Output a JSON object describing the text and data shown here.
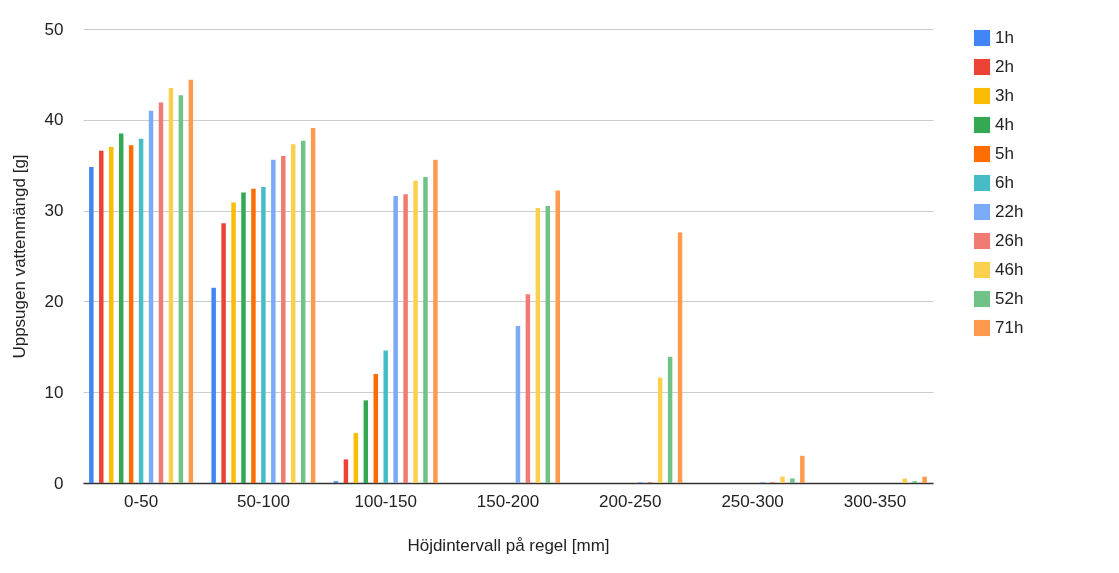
{
  "chart_data": {
    "type": "bar",
    "xlabel": "Höjdintervall på regel [mm]",
    "ylabel": "Uppsugen vattenmängd [g]",
    "categories": [
      "0-50",
      "50-100",
      "100-150",
      "150-200",
      "200-250",
      "250-300",
      "300-350"
    ],
    "ylim": [
      0,
      50
    ],
    "yticks": [
      0,
      10,
      20,
      30,
      40,
      50
    ],
    "grid": "y",
    "legend": "right",
    "series": [
      {
        "name": "1h",
        "color": "#4285f4",
        "values": [
          34.8,
          21.5,
          0.2,
          0,
          0,
          0,
          0
        ]
      },
      {
        "name": "2h",
        "color": "#ea4335",
        "values": [
          36.6,
          28.6,
          2.6,
          0,
          0,
          0,
          0
        ]
      },
      {
        "name": "3h",
        "color": "#fbbc04",
        "values": [
          37.0,
          30.9,
          5.5,
          0,
          0,
          0,
          0
        ]
      },
      {
        "name": "4h",
        "color": "#34a853",
        "values": [
          38.5,
          32.0,
          9.1,
          0,
          0,
          0,
          0
        ]
      },
      {
        "name": "5h",
        "color": "#ff6d01",
        "values": [
          37.2,
          32.4,
          12.0,
          0,
          0,
          0,
          0
        ]
      },
      {
        "name": "6h",
        "color": "#46bdc6",
        "values": [
          37.9,
          32.6,
          14.6,
          0,
          0,
          0,
          0
        ]
      },
      {
        "name": "22h",
        "color": "#7baaf7",
        "values": [
          41.0,
          35.6,
          31.6,
          17.3,
          0.1,
          0.1,
          0
        ]
      },
      {
        "name": "26h",
        "color": "#f07b72",
        "values": [
          41.9,
          36.0,
          31.8,
          20.8,
          0.1,
          0.1,
          0
        ]
      },
      {
        "name": "46h",
        "color": "#fcd04f",
        "values": [
          43.5,
          37.3,
          33.3,
          30.3,
          11.6,
          0.7,
          0.5
        ]
      },
      {
        "name": "52h",
        "color": "#71c287",
        "values": [
          42.7,
          37.7,
          33.7,
          30.5,
          13.9,
          0.5,
          0.2
        ]
      },
      {
        "name": "71h",
        "color": "#ff994d",
        "values": [
          44.4,
          39.1,
          35.6,
          32.2,
          27.6,
          3.0,
          0.7
        ]
      }
    ]
  }
}
